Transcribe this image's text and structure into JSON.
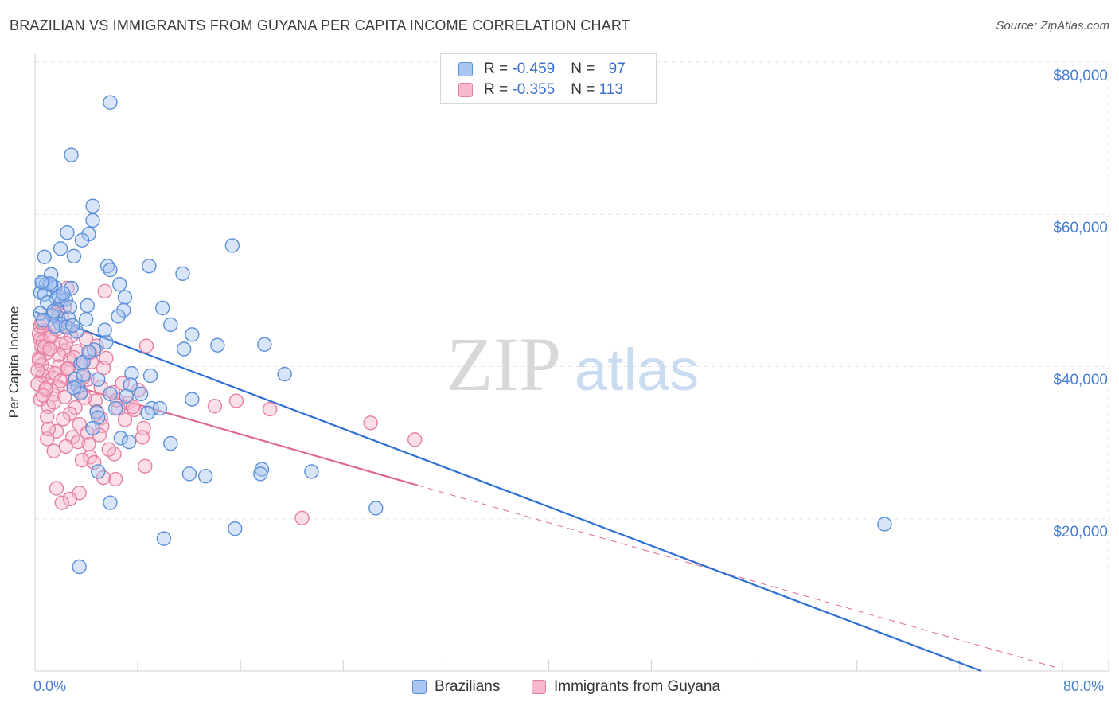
{
  "header": {
    "title": "BRAZILIAN VS IMMIGRANTS FROM GUYANA PER CAPITA INCOME CORRELATION CHART",
    "source": "Source: ZipAtlas.com"
  },
  "watermark": {
    "zip": "ZIP",
    "atlas": "atlas"
  },
  "legend": {
    "row1": {
      "r_label": "R = ",
      "r_value": "-0.459",
      "n_label": "N = ",
      "n_value": "97"
    },
    "row2": {
      "r_label": "R = ",
      "r_value": "-0.355",
      "n_label": "N = ",
      "n_value": "113"
    }
  },
  "colors": {
    "blue_fill": "#a9c6f0",
    "blue_stroke": "#5a8fd8",
    "blue_line": "#2e6fd4",
    "pink_fill": "#f5b8cc",
    "pink_stroke": "#e67fa3",
    "pink_line": "#e06890",
    "grid": "#e2e2e2",
    "axis_text": "#4a7fd4"
  },
  "chart_data": {
    "type": "scatter",
    "title": "BRAZILIAN VS IMMIGRANTS FROM GUYANA PER CAPITA INCOME CORRELATION CHART",
    "xlabel": "",
    "ylabel": "Per Capita Income",
    "xlim": [
      0,
      80
    ],
    "ylim": [
      0,
      80000
    ],
    "x_tick_labels": [
      "0.0%",
      "80.0%"
    ],
    "y_tick_labels": [
      "$20,000",
      "$40,000",
      "$60,000",
      "$80,000"
    ],
    "y_ticks": [
      20000,
      40000,
      60000,
      80000
    ],
    "grid": true,
    "legend_position": "bottom",
    "series": [
      {
        "name": "Brazilians",
        "color": "#5a8fd8",
        "r": -0.459,
        "n": 97,
        "trend": {
          "x": [
            0,
            70.5
          ],
          "y": [
            47200,
            0
          ]
        },
        "points": [
          [
            5.6,
            74700
          ],
          [
            2.7,
            67800
          ],
          [
            4.3,
            61100
          ],
          [
            4.3,
            59200
          ],
          [
            4.0,
            57400
          ],
          [
            2.4,
            57600
          ],
          [
            14.7,
            55900
          ],
          [
            3.5,
            56600
          ],
          [
            1.9,
            55500
          ],
          [
            2.9,
            54500
          ],
          [
            0.7,
            54400
          ],
          [
            8.5,
            53200
          ],
          [
            5.4,
            53200
          ],
          [
            5.6,
            52700
          ],
          [
            11.0,
            52200
          ],
          [
            1.2,
            52100
          ],
          [
            0.6,
            51000
          ],
          [
            0.8,
            50800
          ],
          [
            1.5,
            50400
          ],
          [
            6.3,
            50800
          ],
          [
            1.2,
            50700
          ],
          [
            2.7,
            50300
          ],
          [
            0.4,
            49700
          ],
          [
            0.7,
            49500
          ],
          [
            1.6,
            48900
          ],
          [
            6.7,
            49100
          ],
          [
            2.0,
            48700
          ],
          [
            2.3,
            48800
          ],
          [
            3.9,
            48000
          ],
          [
            9.5,
            47700
          ],
          [
            6.6,
            47400
          ],
          [
            0.4,
            47000
          ],
          [
            1.7,
            46500
          ],
          [
            2.5,
            46300
          ],
          [
            3.8,
            46200
          ],
          [
            6.2,
            46600
          ],
          [
            1.9,
            45600
          ],
          [
            1.5,
            45300
          ],
          [
            2.3,
            45200
          ],
          [
            10.1,
            45500
          ],
          [
            11.7,
            44200
          ],
          [
            13.6,
            42800
          ],
          [
            17.1,
            42900
          ],
          [
            11.1,
            42300
          ],
          [
            4.4,
            42200
          ],
          [
            5.3,
            43200
          ],
          [
            3.4,
            40400
          ],
          [
            3.6,
            40600
          ],
          [
            7.2,
            39100
          ],
          [
            18.6,
            39000
          ],
          [
            8.6,
            38800
          ],
          [
            3.0,
            38400
          ],
          [
            4.7,
            38300
          ],
          [
            3.2,
            37400
          ],
          [
            7.1,
            37600
          ],
          [
            3.4,
            36500
          ],
          [
            5.6,
            36400
          ],
          [
            7.9,
            36400
          ],
          [
            11.7,
            35700
          ],
          [
            8.7,
            34500
          ],
          [
            9.3,
            34500
          ],
          [
            6.0,
            34500
          ],
          [
            4.6,
            34000
          ],
          [
            8.4,
            33900
          ],
          [
            4.7,
            33300
          ],
          [
            4.3,
            31900
          ],
          [
            6.4,
            30600
          ],
          [
            7.0,
            30100
          ],
          [
            10.1,
            29900
          ],
          [
            4.7,
            26200
          ],
          [
            11.5,
            25900
          ],
          [
            12.7,
            25600
          ],
          [
            16.9,
            26500
          ],
          [
            16.8,
            25900
          ],
          [
            20.6,
            26200
          ],
          [
            5.6,
            22100
          ],
          [
            25.4,
            21400
          ],
          [
            14.9,
            18700
          ],
          [
            9.6,
            17400
          ],
          [
            3.3,
            13700
          ],
          [
            63.3,
            19300
          ],
          [
            1.1,
            50900
          ],
          [
            0.5,
            51100
          ],
          [
            1.8,
            49200
          ],
          [
            2.6,
            47800
          ],
          [
            1.3,
            46700
          ],
          [
            3.1,
            44600
          ],
          [
            0.9,
            48400
          ],
          [
            2.1,
            49600
          ],
          [
            0.6,
            46100
          ],
          [
            1.4,
            47300
          ],
          [
            2.8,
            45400
          ],
          [
            5.2,
            44800
          ],
          [
            4.0,
            41900
          ],
          [
            3.6,
            38900
          ],
          [
            2.9,
            37200
          ],
          [
            6.8,
            36100
          ]
        ]
      },
      {
        "name": "Immigrants from Guyana",
        "color": "#e67fa3",
        "r": -0.355,
        "n": 113,
        "trend": {
          "x": [
            0,
            28.5
          ],
          "y": [
            38900,
            24400
          ]
        },
        "trend_extension": {
          "x": [
            28.5,
            76
          ],
          "y": [
            24400,
            500
          ]
        },
        "points": [
          [
            2.4,
            50300
          ],
          [
            5.2,
            49900
          ],
          [
            1.7,
            47500
          ],
          [
            2.2,
            47800
          ],
          [
            1.3,
            47000
          ],
          [
            2.0,
            46700
          ],
          [
            0.4,
            45300
          ],
          [
            2.5,
            45100
          ],
          [
            0.7,
            44700
          ],
          [
            0.3,
            44300
          ],
          [
            1.1,
            44100
          ],
          [
            0.4,
            43600
          ],
          [
            0.6,
            43300
          ],
          [
            1.9,
            42900
          ],
          [
            0.5,
            42600
          ],
          [
            2.2,
            42100
          ],
          [
            3.1,
            42000
          ],
          [
            0.9,
            41800
          ],
          [
            1.8,
            41500
          ],
          [
            8.3,
            42700
          ],
          [
            4.1,
            41800
          ],
          [
            0.3,
            41100
          ],
          [
            2.6,
            40900
          ],
          [
            3.5,
            40400
          ],
          [
            0.5,
            40200
          ],
          [
            1.8,
            40000
          ],
          [
            2.5,
            39800
          ],
          [
            0.9,
            39400
          ],
          [
            5.1,
            39800
          ],
          [
            0.6,
            38800
          ],
          [
            1.3,
            38500
          ],
          [
            3.9,
            38300
          ],
          [
            2.8,
            37900
          ],
          [
            0.2,
            37700
          ],
          [
            1.7,
            37400
          ],
          [
            2.9,
            37200
          ],
          [
            0.8,
            36900
          ],
          [
            3.4,
            36700
          ],
          [
            5.8,
            36600
          ],
          [
            1.4,
            36300
          ],
          [
            2.2,
            36000
          ],
          [
            0.4,
            35700
          ],
          [
            4.5,
            35500
          ],
          [
            6.9,
            35200
          ],
          [
            15.0,
            35500
          ],
          [
            13.4,
            34800
          ],
          [
            17.5,
            34400
          ],
          [
            1.0,
            34700
          ],
          [
            3.0,
            34600
          ],
          [
            6.2,
            34500
          ],
          [
            7.4,
            34300
          ],
          [
            2.6,
            33800
          ],
          [
            0.9,
            33400
          ],
          [
            4.9,
            33200
          ],
          [
            6.7,
            33000
          ],
          [
            25.0,
            32600
          ],
          [
            3.3,
            32400
          ],
          [
            5.0,
            32200
          ],
          [
            8.1,
            31900
          ],
          [
            1.6,
            31500
          ],
          [
            3.9,
            31300
          ],
          [
            4.8,
            31000
          ],
          [
            2.8,
            30700
          ],
          [
            8.0,
            30700
          ],
          [
            28.3,
            30400
          ],
          [
            0.9,
            30500
          ],
          [
            4.0,
            29800
          ],
          [
            2.3,
            29500
          ],
          [
            1.4,
            28900
          ],
          [
            5.9,
            28500
          ],
          [
            4.1,
            28100
          ],
          [
            3.5,
            27700
          ],
          [
            8.2,
            26900
          ],
          [
            4.4,
            27400
          ],
          [
            6.0,
            25200
          ],
          [
            5.1,
            25400
          ],
          [
            1.6,
            24000
          ],
          [
            3.3,
            23400
          ],
          [
            2.6,
            22600
          ],
          [
            2.0,
            22100
          ],
          [
            19.9,
            20100
          ],
          [
            1.2,
            43900
          ],
          [
            0.7,
            42500
          ],
          [
            2.7,
            44000
          ],
          [
            1.5,
            39100
          ],
          [
            0.8,
            37100
          ],
          [
            3.7,
            35900
          ],
          [
            4.6,
            34100
          ],
          [
            2.1,
            33100
          ],
          [
            1.0,
            31800
          ],
          [
            3.2,
            30100
          ],
          [
            5.5,
            29100
          ],
          [
            0.6,
            36200
          ],
          [
            1.9,
            38100
          ],
          [
            2.4,
            39700
          ],
          [
            4.2,
            40600
          ],
          [
            6.5,
            37800
          ],
          [
            7.7,
            36900
          ],
          [
            0.3,
            40800
          ],
          [
            1.1,
            42300
          ],
          [
            2.9,
            41200
          ],
          [
            3.8,
            43600
          ],
          [
            4.6,
            42700
          ],
          [
            5.3,
            41100
          ],
          [
            0.5,
            45800
          ],
          [
            1.6,
            44900
          ],
          [
            2.3,
            43100
          ],
          [
            3.6,
            38600
          ],
          [
            4.9,
            37300
          ],
          [
            6.1,
            35600
          ],
          [
            7.3,
            34700
          ],
          [
            0.2,
            39500
          ],
          [
            1.4,
            35300
          ]
        ]
      }
    ]
  }
}
